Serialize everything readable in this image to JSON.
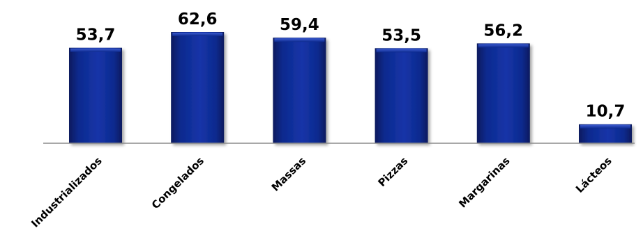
{
  "chart_data": {
    "type": "bar",
    "title": "",
    "xlabel": "",
    "ylabel": "",
    "categories": [
      "Industrializados",
      "Congelados",
      "Massas",
      "Pizzas",
      "Margarinas",
      "Lácteos"
    ],
    "values": [
      53.7,
      62.6,
      59.4,
      53.5,
      56.2,
      10.7
    ],
    "value_labels": [
      "53,7",
      "62,6",
      "59,4",
      "53,5",
      "56,2",
      "10,7"
    ],
    "ylim": [
      0,
      62.6
    ],
    "grid": false,
    "legend": "none",
    "colors": {
      "bar": "#0d2a8e",
      "bar_dark": "#081a5e",
      "bar_light": "#2b4cc4",
      "axis": "#8c8c8c"
    }
  }
}
